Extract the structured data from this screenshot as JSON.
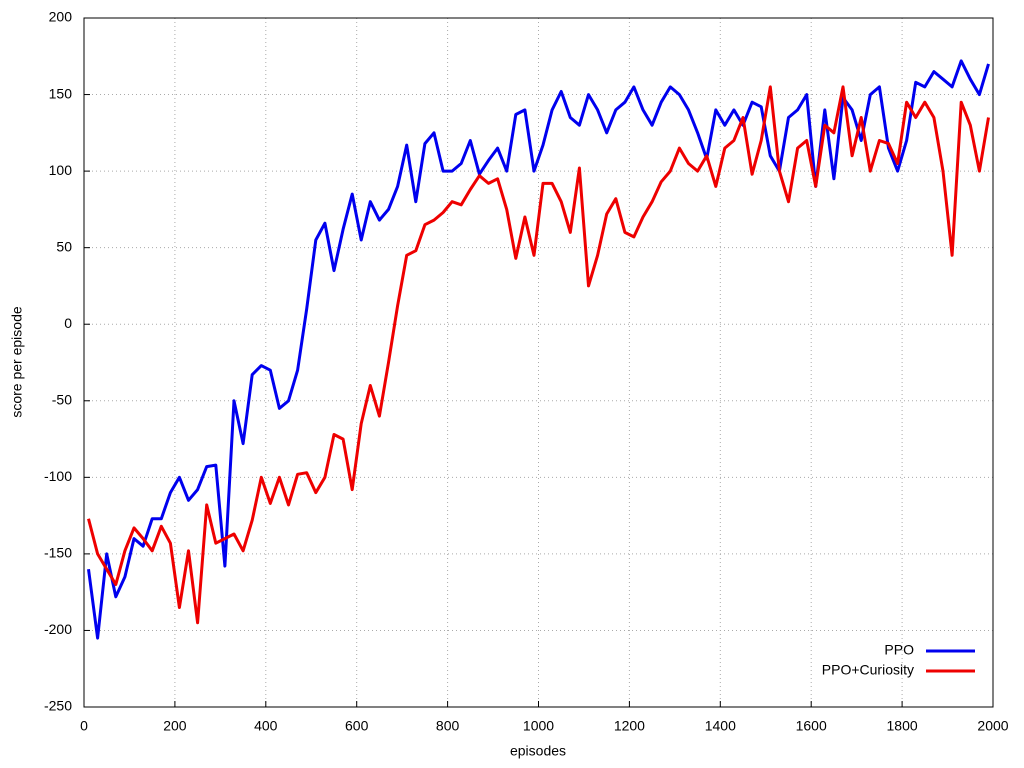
{
  "chart_data": {
    "type": "line",
    "xlabel": "episodes",
    "ylabel": "score per episode",
    "x": [
      10,
      30,
      50,
      70,
      90,
      110,
      130,
      150,
      170,
      190,
      210,
      230,
      250,
      270,
      290,
      310,
      330,
      350,
      370,
      390,
      410,
      430,
      450,
      470,
      490,
      510,
      530,
      550,
      570,
      590,
      610,
      630,
      650,
      670,
      690,
      710,
      730,
      750,
      770,
      790,
      810,
      830,
      850,
      870,
      890,
      910,
      930,
      950,
      970,
      990,
      1010,
      1030,
      1050,
      1070,
      1090,
      1110,
      1130,
      1150,
      1170,
      1190,
      1210,
      1230,
      1250,
      1270,
      1290,
      1310,
      1330,
      1350,
      1370,
      1390,
      1410,
      1430,
      1450,
      1470,
      1490,
      1510,
      1530,
      1550,
      1570,
      1590,
      1610,
      1630,
      1650,
      1670,
      1690,
      1710,
      1730,
      1750,
      1770,
      1790,
      1810,
      1830,
      1850,
      1870,
      1890,
      1910,
      1930,
      1950,
      1970,
      1990
    ],
    "series": [
      {
        "name": "PPO",
        "color": "#0000ee",
        "values": [
          -160,
          -205,
          -150,
          -178,
          -165,
          -140,
          -145,
          -127,
          -127,
          -110,
          -100,
          -115,
          -108,
          -93,
          -92,
          -158,
          -50,
          -78,
          -33,
          -27,
          -30,
          -55,
          -50,
          -30,
          10,
          55,
          66,
          35,
          62,
          85,
          55,
          80,
          68,
          75,
          90,
          117,
          80,
          118,
          125,
          100,
          100,
          105,
          120,
          98,
          107,
          115,
          100,
          137,
          140,
          100,
          117,
          140,
          152,
          135,
          130,
          150,
          140,
          125,
          140,
          145,
          155,
          140,
          130,
          145,
          155,
          150,
          140,
          125,
          108,
          140,
          130,
          140,
          130,
          145,
          142,
          110,
          100,
          135,
          140,
          150,
          90,
          140,
          95,
          148,
          140,
          120,
          150,
          155,
          115,
          100,
          120,
          158,
          155,
          165,
          160,
          155,
          172,
          160,
          150,
          170
        ]
      },
      {
        "name": "PPO+Curiosity",
        "color": "#ee0000",
        "values": [
          -127,
          -150,
          -160,
          -170,
          -148,
          -133,
          -140,
          -148,
          -132,
          -143,
          -185,
          -148,
          -195,
          -118,
          -143,
          -140,
          -137,
          -148,
          -128,
          -100,
          -117,
          -100,
          -118,
          -98,
          -97,
          -110,
          -100,
          -72,
          -75,
          -108,
          -65,
          -40,
          -60,
          -25,
          12,
          45,
          48,
          65,
          68,
          73,
          80,
          78,
          88,
          97,
          92,
          95,
          75,
          43,
          70,
          45,
          92,
          92,
          80,
          60,
          102,
          25,
          45,
          72,
          82,
          60,
          57,
          70,
          80,
          93,
          100,
          115,
          105,
          100,
          110,
          90,
          115,
          120,
          135,
          98,
          120,
          155,
          100,
          80,
          115,
          120,
          90,
          130,
          125,
          155,
          110,
          135,
          100,
          120,
          118,
          105,
          145,
          135,
          145,
          135,
          100,
          45,
          145,
          130,
          100,
          135
        ]
      }
    ],
    "xlim": [
      0,
      2000
    ],
    "xticks": [
      0,
      200,
      400,
      600,
      800,
      1000,
      1200,
      1400,
      1600,
      1800,
      2000
    ],
    "ylim": [
      -250,
      200
    ],
    "yticks": [
      -250,
      -200,
      -150,
      -100,
      -50,
      0,
      50,
      100,
      150,
      200
    ],
    "grid": true,
    "legend": "bottom-right"
  }
}
